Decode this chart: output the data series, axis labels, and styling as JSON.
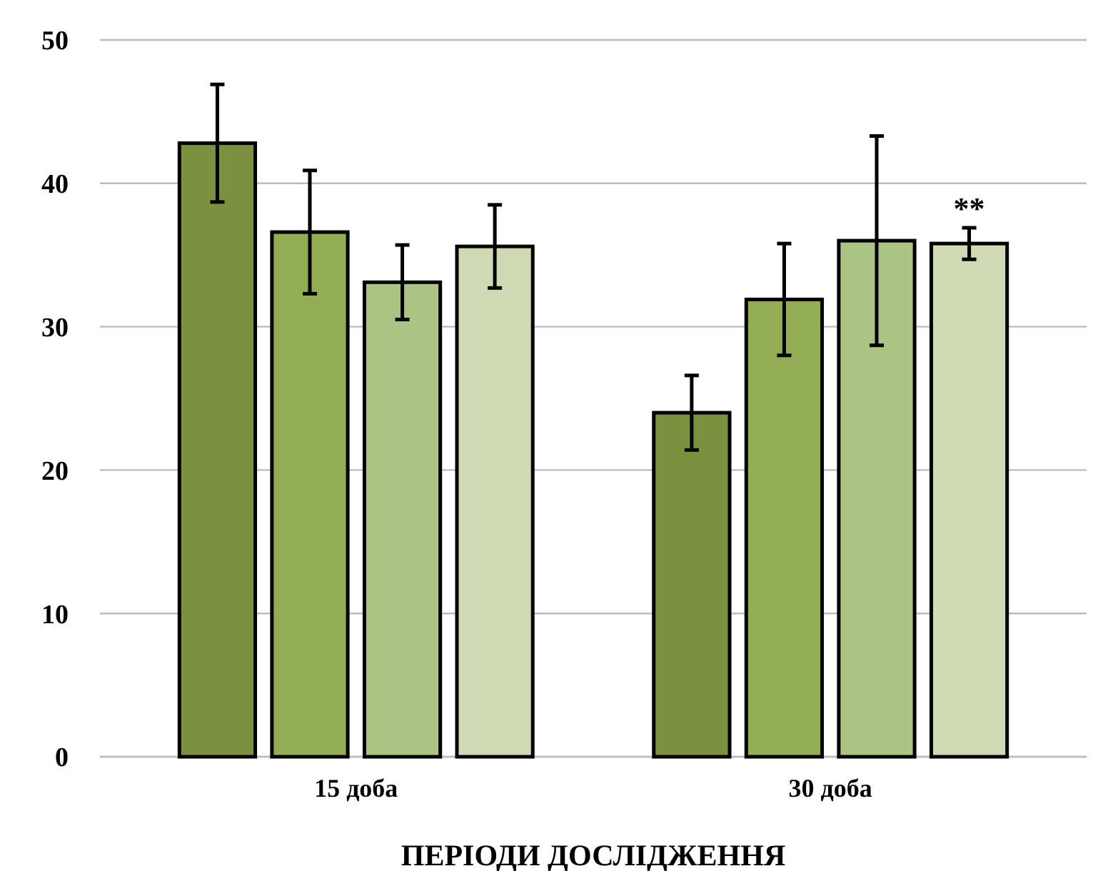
{
  "chart_data": {
    "type": "bar",
    "categories": [
      "15 доба",
      "30 доба"
    ],
    "xlabel": "ПЕРІОДИ ДОСЛІДЖЕННЯ",
    "series": [
      {
        "color": "#7a9140",
        "values": [
          42.8,
          24.0
        ],
        "errors": [
          4.1,
          2.6
        ]
      },
      {
        "color": "#93ae52",
        "values": [
          36.6,
          31.9
        ],
        "errors": [
          4.3,
          3.9
        ]
      },
      {
        "color": "#abc484",
        "values": [
          33.1,
          36.0
        ],
        "errors": [
          2.6,
          7.3
        ]
      },
      {
        "color": "#cfd9b3",
        "values": [
          35.6,
          35.8
        ],
        "errors": [
          2.9,
          1.1
        ]
      }
    ],
    "ylim": [
      0,
      50
    ],
    "yticks": [
      0,
      10,
      20,
      30,
      40,
      50
    ],
    "grid": "y",
    "annotations": [
      "**"
    ]
  }
}
